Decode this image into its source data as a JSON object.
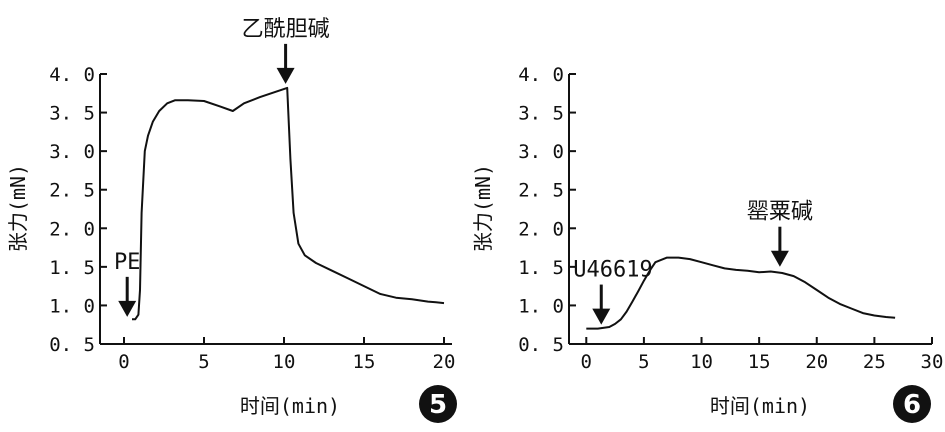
{
  "chart_data": [
    {
      "id": "p5",
      "type": "line",
      "xlabel": "时间(min)",
      "ylabel": "张力(mN)",
      "xlim": [
        -1.5,
        20.5
      ],
      "ylim": [
        0.5,
        4.0
      ],
      "xticks": [
        0,
        5,
        10,
        15,
        20
      ],
      "yticks": [
        0.5,
        1.0,
        1.5,
        2.0,
        2.5,
        3.0,
        3.5,
        4.0
      ],
      "ytick_labels": [
        "0. 5",
        "1. 0",
        "1. 5",
        "2. 0",
        "2. 5",
        "3. 0",
        "3. 5",
        "4. 0"
      ],
      "badge": "5",
      "series": [
        {
          "x": [
            0.5,
            0.7,
            0.9,
            1.0,
            1.1,
            1.3,
            1.5,
            1.8,
            2.2,
            2.7,
            3.2,
            4.0,
            5.0,
            6.0,
            6.8,
            7.5,
            8.5,
            9.5,
            10.2,
            10.4,
            10.6,
            10.9,
            11.3,
            12.0,
            13.0,
            14.0,
            15.0,
            16.0,
            17.0,
            18.0,
            19.0,
            19.5,
            20.0
          ],
          "values": [
            0.82,
            0.82,
            0.88,
            1.2,
            2.2,
            3.0,
            3.2,
            3.38,
            3.52,
            3.62,
            3.66,
            3.66,
            3.65,
            3.58,
            3.52,
            3.62,
            3.7,
            3.77,
            3.82,
            2.9,
            2.2,
            1.8,
            1.65,
            1.55,
            1.45,
            1.35,
            1.25,
            1.15,
            1.1,
            1.08,
            1.05,
            1.04,
            1.03
          ]
        }
      ],
      "annotations": [
        {
          "text": "PE",
          "x": 0.2,
          "y": 0.8
        },
        {
          "text": "乙酰胆碱",
          "x": 10.1,
          "y": 3.82
        }
      ]
    },
    {
      "id": "p6",
      "type": "line",
      "xlabel": "时间(min)",
      "ylabel": "张力(mN)",
      "xlim": [
        -1.5,
        30
      ],
      "ylim": [
        0.5,
        4.0
      ],
      "xticks": [
        0,
        5,
        10,
        15,
        20,
        25,
        30
      ],
      "yticks": [
        0.5,
        1.0,
        1.5,
        2.0,
        2.5,
        3.0,
        3.5,
        4.0
      ],
      "ytick_labels": [
        "0. 5",
        "1. 0",
        "1. 5",
        "2. 0",
        "2. 5",
        "3. 0",
        "3. 5",
        "4. 0"
      ],
      "badge": "6",
      "series": [
        {
          "x": [
            0.0,
            1.0,
            2.0,
            2.5,
            3.0,
            3.5,
            4.0,
            4.5,
            5.0,
            5.5,
            6.0,
            7.0,
            8.0,
            9.0,
            10.0,
            11.0,
            12.0,
            13.0,
            14.0,
            15.0,
            16.0,
            17.0,
            18.0,
            19.0,
            20.0,
            21.0,
            22.0,
            23.0,
            24.0,
            25.0,
            26.0,
            26.8
          ],
          "values": [
            0.7,
            0.7,
            0.72,
            0.76,
            0.82,
            0.92,
            1.05,
            1.18,
            1.32,
            1.45,
            1.56,
            1.62,
            1.62,
            1.6,
            1.56,
            1.52,
            1.48,
            1.46,
            1.45,
            1.43,
            1.44,
            1.42,
            1.38,
            1.3,
            1.2,
            1.1,
            1.02,
            0.96,
            0.9,
            0.87,
            0.85,
            0.84
          ]
        }
      ],
      "annotations": [
        {
          "text": "U46619",
          "x": 1.3,
          "y": 0.7
        },
        {
          "text": "罂粟碱",
          "x": 16.8,
          "y": 1.45
        }
      ]
    }
  ]
}
